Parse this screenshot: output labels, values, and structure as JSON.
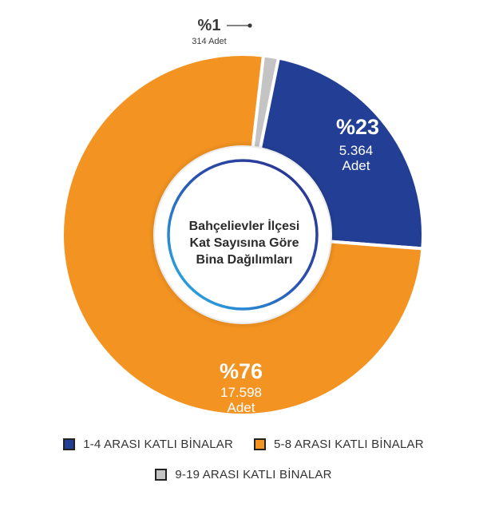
{
  "chart_data": {
    "type": "pie",
    "title_lines": [
      "Bahçelievler İlçesi",
      "Kat Sayısına Göre",
      "Bina Dağılımları"
    ],
    "categories": [
      "1-4 ARASI KATLI BİNALAR",
      "5-8 ARASI KATLI BİNALAR",
      "9-19 ARASI KATLI BİNALAR"
    ],
    "values": [
      5364,
      17598,
      314
    ],
    "percent_labels": [
      "%23",
      "%76",
      "%1"
    ],
    "count_labels": [
      "5.364",
      "17.598",
      "314 Adet"
    ],
    "unit_label": "Adet",
    "colors": [
      "#233f95",
      "#f39321",
      "#c4c4c4"
    ],
    "legend_placement": "bottom"
  }
}
